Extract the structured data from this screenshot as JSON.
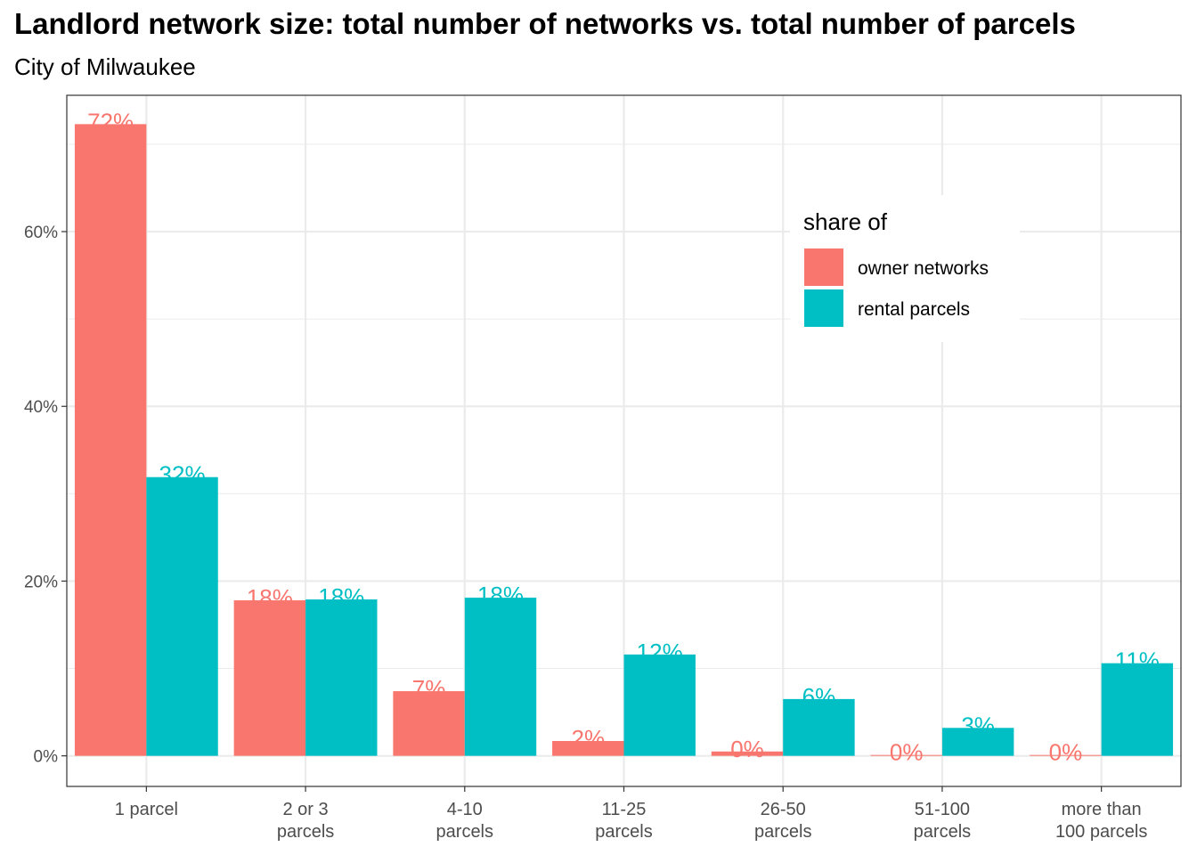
{
  "chart_data": {
    "type": "bar",
    "title": "Landlord network size: total number of networks vs. total number of parcels",
    "subtitle": "City of Milwaukee",
    "xlabel": "",
    "ylabel": "",
    "categories": [
      "1 parcel",
      "2 or 3\nparcels",
      "4-10\nparcels",
      "11-25\nparcels",
      "26-50\nparcels",
      "51-100\nparcels",
      "more than\n100 parcels"
    ],
    "series": [
      {
        "name": "owner networks",
        "color": "#F8766D",
        "values": [
          72.3,
          17.8,
          7.4,
          1.7,
          0.5,
          0.1,
          0.1
        ],
        "labels": [
          "72%",
          "18%",
          "7%",
          "2%",
          "0%",
          "0%",
          "0%"
        ]
      },
      {
        "name": "rental parcels",
        "color": "#00BFC4",
        "values": [
          31.9,
          17.9,
          18.1,
          11.6,
          6.5,
          3.2,
          10.6
        ],
        "labels": [
          "32%",
          "18%",
          "18%",
          "12%",
          "6%",
          "3%",
          "11%"
        ]
      }
    ],
    "ylim": [
      -3.5,
      75.6
    ],
    "yticks": [
      0,
      20,
      40,
      60
    ],
    "ytick_labels": [
      "0%",
      "20%",
      "40%",
      "60%"
    ],
    "grid": true,
    "legend": {
      "title": "share of",
      "position": "top-right inside"
    }
  }
}
